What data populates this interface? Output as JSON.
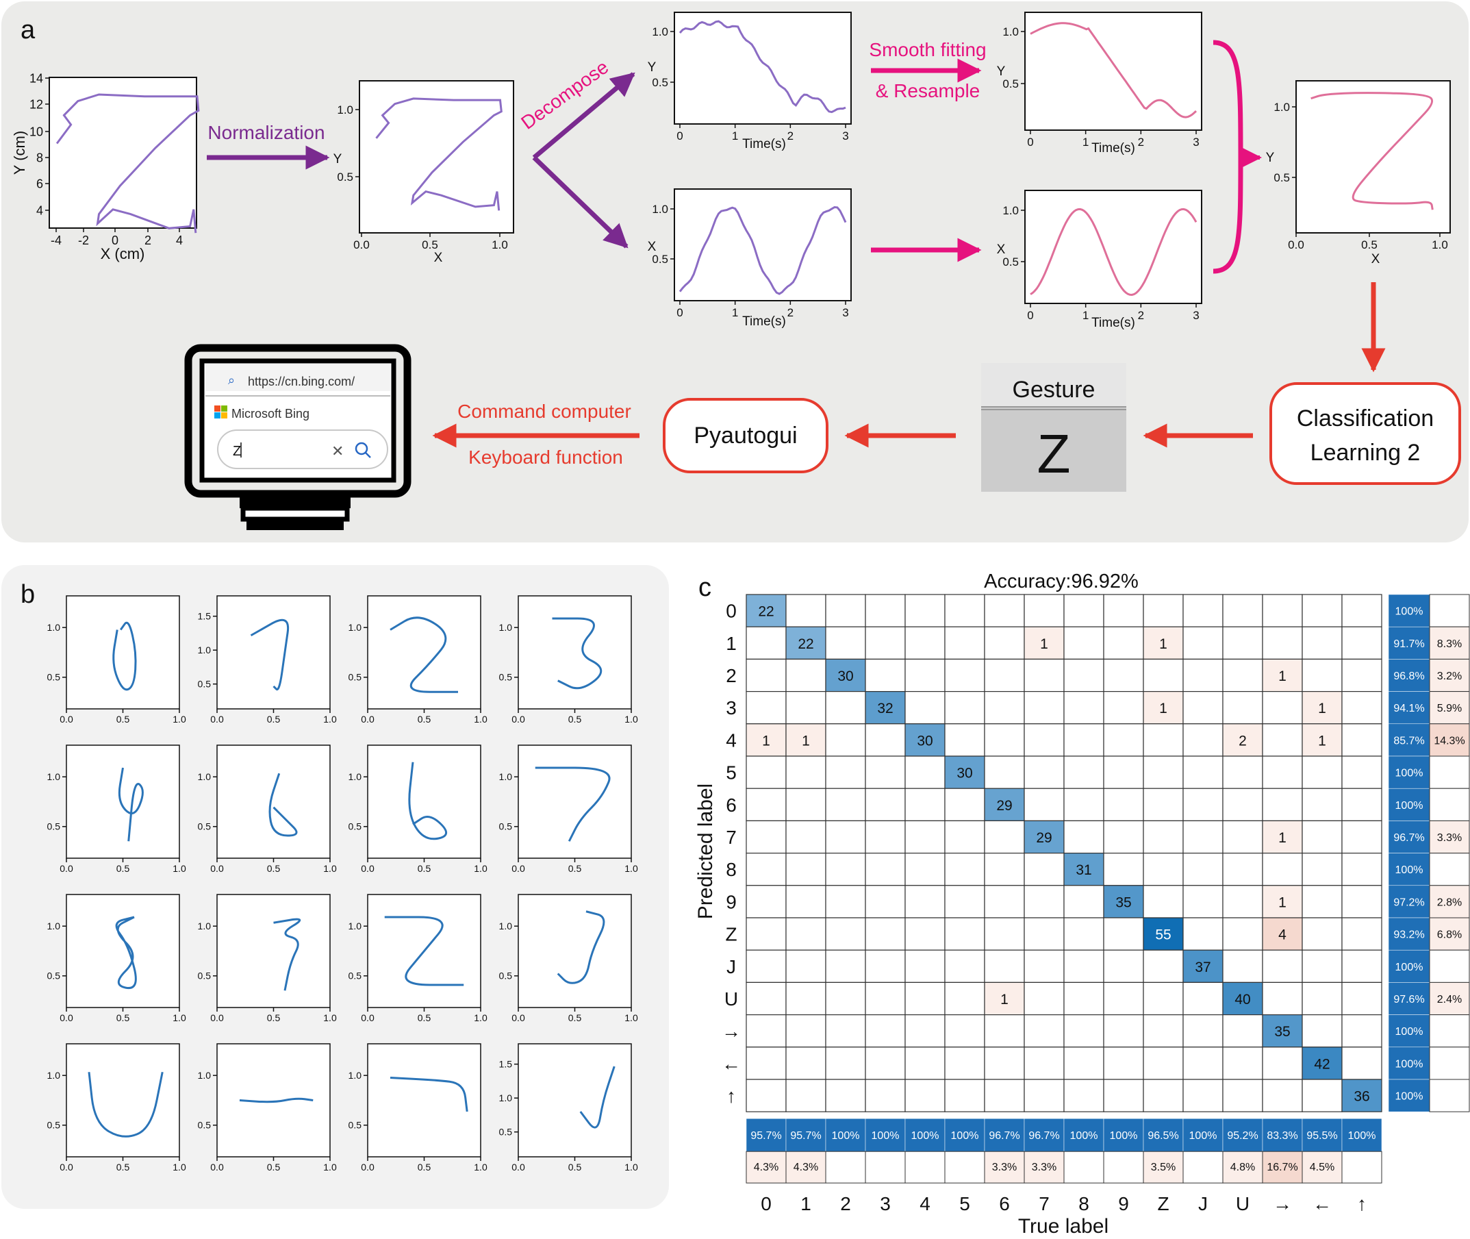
{
  "panel_a": {
    "label": "a",
    "raw_plot": {
      "x_ticks": [
        "-4",
        "-2",
        "0",
        "2",
        "4"
      ],
      "y_ticks": [
        "4",
        "6",
        "8",
        "10",
        "12",
        "14"
      ],
      "xlabel": "X (cm)",
      "ylabel": "Y (cm)"
    },
    "norm_plot": {
      "x_ticks": [
        "0.0",
        "0.5",
        "1.0"
      ],
      "y_ticks": [
        "0.5",
        "1.0"
      ],
      "xlabel": "X",
      "ylabel": "Y"
    },
    "steps": {
      "normalization": "Normalization",
      "decompose": "Decompose",
      "smooth_line1": "Smooth fitting",
      "smooth_line2": "& Resample"
    },
    "ts_plots": {
      "x_ticks": [
        "0",
        "1",
        "2",
        "3"
      ],
      "xlabel": "Time(s)",
      "y_label_top": "Y",
      "y_label_bottom": "X",
      "y_ticks_top": [
        "0.5",
        "1.0"
      ],
      "y_ticks_bottom": [
        "0.5",
        "1.0"
      ]
    },
    "final_plot": {
      "x_ticks": [
        "0.0",
        "0.5",
        "1.0"
      ],
      "y_ticks": [
        "0.5",
        "1.0"
      ],
      "xlabel": "X",
      "ylabel": "Y"
    },
    "classification_line1": "Classification",
    "classification_line2": "Learning 2",
    "gesture_label": "Gesture",
    "gesture_value": "Z",
    "pyautogui": "Pyautogui",
    "command_line1": "Command computer",
    "command_line2": "Keyboard function",
    "monitor": {
      "url": "https://cn.bing.com/",
      "brand": "Microsoft Bing",
      "query": "Z"
    }
  },
  "panel_b": {
    "label": "b",
    "x_ticks": [
      "0.0",
      "0.5",
      "1.0"
    ],
    "plots": [
      {
        "y_ticks": [
          "0.5",
          "1.0"
        ]
      },
      {
        "y_ticks": [
          "0.5",
          "1.0",
          "1.5"
        ]
      },
      {
        "y_ticks": [
          "0.5",
          "1.0"
        ]
      },
      {
        "y_ticks": [
          "0.5",
          "1.0"
        ]
      },
      {
        "y_ticks": [
          "0.5",
          "1.0"
        ]
      },
      {
        "y_ticks": [
          "0.5",
          "1.0"
        ]
      },
      {
        "y_ticks": [
          "0.5",
          "1.0"
        ]
      },
      {
        "y_ticks": [
          "0.5",
          "1.0"
        ]
      },
      {
        "y_ticks": [
          "0.5",
          "1.0"
        ]
      },
      {
        "y_ticks": [
          "0.5",
          "1.0"
        ]
      },
      {
        "y_ticks": [
          "0.5",
          "1.0"
        ]
      },
      {
        "y_ticks": [
          "0.5",
          "1.0"
        ]
      },
      {
        "y_ticks": [
          "0.5",
          "1.0"
        ]
      },
      {
        "y_ticks": [
          "0.5",
          "1.0"
        ]
      },
      {
        "y_ticks": [
          "0.5",
          "1.0"
        ]
      },
      {
        "y_ticks": [
          "0.5",
          "1.0",
          "1.5"
        ]
      }
    ]
  },
  "panel_c": {
    "label": "c",
    "title": "Accuracy:96.92%",
    "xlabel": "True label",
    "ylabel": "Predicted label",
    "labels": [
      "0",
      "1",
      "2",
      "3",
      "4",
      "5",
      "6",
      "7",
      "8",
      "9",
      "Z",
      "J",
      "U",
      "→",
      "←",
      "↑"
    ],
    "matrix": [
      [
        22,
        0,
        0,
        0,
        0,
        0,
        0,
        0,
        0,
        0,
        0,
        0,
        0,
        0,
        0,
        0
      ],
      [
        0,
        22,
        0,
        0,
        0,
        0,
        0,
        1,
        0,
        0,
        1,
        0,
        0,
        0,
        0,
        0
      ],
      [
        0,
        0,
        30,
        0,
        0,
        0,
        0,
        0,
        0,
        0,
        0,
        0,
        0,
        1,
        0,
        0
      ],
      [
        0,
        0,
        0,
        32,
        0,
        0,
        0,
        0,
        0,
        0,
        1,
        0,
        0,
        0,
        1,
        0
      ],
      [
        1,
        1,
        0,
        0,
        30,
        0,
        0,
        0,
        0,
        0,
        0,
        0,
        2,
        0,
        1,
        0
      ],
      [
        0,
        0,
        0,
        0,
        0,
        30,
        0,
        0,
        0,
        0,
        0,
        0,
        0,
        0,
        0,
        0
      ],
      [
        0,
        0,
        0,
        0,
        0,
        0,
        29,
        0,
        0,
        0,
        0,
        0,
        0,
        0,
        0,
        0
      ],
      [
        0,
        0,
        0,
        0,
        0,
        0,
        0,
        29,
        0,
        0,
        0,
        0,
        0,
        1,
        0,
        0
      ],
      [
        0,
        0,
        0,
        0,
        0,
        0,
        0,
        0,
        31,
        0,
        0,
        0,
        0,
        0,
        0,
        0
      ],
      [
        0,
        0,
        0,
        0,
        0,
        0,
        0,
        0,
        0,
        35,
        0,
        0,
        0,
        1,
        0,
        0
      ],
      [
        0,
        0,
        0,
        0,
        0,
        0,
        0,
        0,
        0,
        0,
        55,
        0,
        0,
        4,
        0,
        0
      ],
      [
        0,
        0,
        0,
        0,
        0,
        0,
        0,
        0,
        0,
        0,
        0,
        37,
        0,
        0,
        0,
        0
      ],
      [
        0,
        0,
        0,
        0,
        0,
        0,
        1,
        0,
        0,
        0,
        0,
        0,
        40,
        0,
        0,
        0
      ],
      [
        0,
        0,
        0,
        0,
        0,
        0,
        0,
        0,
        0,
        0,
        0,
        0,
        0,
        35,
        0,
        0
      ],
      [
        0,
        0,
        0,
        0,
        0,
        0,
        0,
        0,
        0,
        0,
        0,
        0,
        0,
        0,
        42,
        0
      ],
      [
        0,
        0,
        0,
        0,
        0,
        0,
        0,
        0,
        0,
        0,
        0,
        0,
        0,
        0,
        0,
        36
      ]
    ],
    "row_precision": [
      "100%",
      "91.7%",
      "96.8%",
      "94.1%",
      "85.7%",
      "100%",
      "100%",
      "96.7%",
      "100%",
      "97.2%",
      "93.2%",
      "100%",
      "97.6%",
      "100%",
      "100%",
      "100%"
    ],
    "row_error": [
      "",
      "8.3%",
      "3.2%",
      "5.9%",
      "14.3%",
      "",
      "",
      "3.3%",
      "",
      "2.8%",
      "6.8%",
      "",
      "2.4%",
      "",
      "",
      ""
    ],
    "col_recall": [
      "95.7%",
      "95.7%",
      "100%",
      "100%",
      "100%",
      "100%",
      "96.7%",
      "96.7%",
      "100%",
      "100%",
      "96.5%",
      "100%",
      "95.2%",
      "83.3%",
      "95.5%",
      "100%"
    ],
    "col_error": [
      "4.3%",
      "4.3%",
      "",
      "",
      "",
      "",
      "3.3%",
      "3.3%",
      "",
      "",
      "3.5%",
      "",
      "4.8%",
      "16.7%",
      "4.5%",
      ""
    ]
  },
  "colors": {
    "panel_bg": "#ebebe9",
    "panel_b_bg": "#f2f2f2",
    "purple": "#7a2a8f",
    "trace_purple": "#8b6cc4",
    "magenta": "#e6127e",
    "trace_pink": "#df6f99",
    "red": "#e63b2e",
    "blue": "#2a74b8"
  }
}
